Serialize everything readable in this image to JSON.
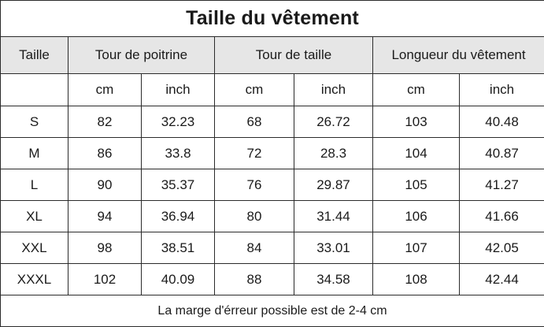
{
  "title": "Taille du vêtement",
  "headers": {
    "size": "Taille",
    "chest": "Tour de poitrine",
    "waist": "Tour de taille",
    "length": "Longueur du vêtement"
  },
  "units": [
    "cm",
    "inch",
    "cm",
    "inch",
    "cm",
    "inch"
  ],
  "rows": [
    {
      "size": "S",
      "values": [
        "82",
        "32.23",
        "68",
        "26.72",
        "103",
        "40.48"
      ]
    },
    {
      "size": "M",
      "values": [
        "86",
        "33.8",
        "72",
        "28.3",
        "104",
        "40.87"
      ]
    },
    {
      "size": "L",
      "values": [
        "90",
        "35.37",
        "76",
        "29.87",
        "105",
        "41.27"
      ]
    },
    {
      "size": "XL",
      "values": [
        "94",
        "36.94",
        "80",
        "31.44",
        "106",
        "41.66"
      ]
    },
    {
      "size": "XXL",
      "values": [
        "98",
        "38.51",
        "84",
        "33.01",
        "107",
        "42.05"
      ]
    },
    {
      "size": "XXXL",
      "values": [
        "102",
        "40.09",
        "88",
        "34.58",
        "108",
        "42.44"
      ]
    }
  ],
  "note": "La marge d'érreur possible est de 2-4 cm"
}
